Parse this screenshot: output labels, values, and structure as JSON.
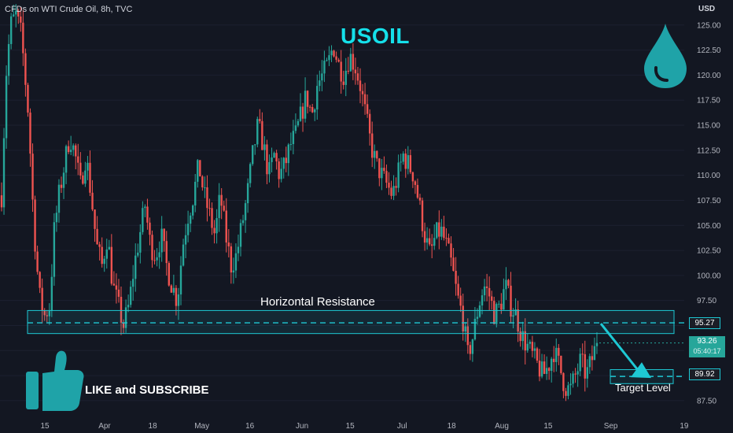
{
  "header": {
    "symbol_line": "CFDs on WTI Crude Oil, 8h, TVC",
    "currency": "USD"
  },
  "overlays": {
    "title": "USOIL",
    "resistance_label": "Horizontal Resistance",
    "target_label": "Target Level",
    "subscribe_label": "LIKE and SUBSCRIBE"
  },
  "price_tags": {
    "resistance": "95.27",
    "target": "89.92",
    "current_price": "93.26",
    "countdown": "05:40:17"
  },
  "colors": {
    "background": "#131722",
    "up": "#26a69a",
    "down": "#ef5350",
    "accent": "#1ec8d4",
    "icon": "#1fa3a8"
  },
  "icons": [
    "water-drop-icon",
    "thumbs-up-icon",
    "arrow-icon"
  ],
  "chart_data": {
    "type": "candlestick",
    "timeframe": "8h",
    "ylim": [
      86,
      127.5
    ],
    "y_ticks": [
      "87.50",
      "90.00",
      "92.50",
      "95.00",
      "97.50",
      "100.00",
      "102.50",
      "105.00",
      "107.50",
      "110.00",
      "112.50",
      "115.00",
      "117.50",
      "120.00",
      "122.50",
      "125.00"
    ],
    "x_ticks": [
      {
        "label": "15",
        "pos": 0.0
      },
      {
        "label": "Apr",
        "pos": 0.0929
      },
      {
        "label": "18",
        "pos": 0.1676
      },
      {
        "label": "May",
        "pos": 0.2441
      },
      {
        "label": "16",
        "pos": 0.3187
      },
      {
        "label": "Jun",
        "pos": 0.3999
      },
      {
        "label": "15",
        "pos": 0.4745
      },
      {
        "label": "Jul",
        "pos": 0.5553
      },
      {
        "label": "18",
        "pos": 0.6322
      },
      {
        "label": "Aug",
        "pos": 0.7103
      },
      {
        "label": "15",
        "pos": 0.7823
      },
      {
        "label": "Sep",
        "pos": 0.8797
      },
      {
        "label": "19",
        "pos": 0.9938
      }
    ],
    "closes_anchor": [
      [
        0.0,
        108
      ],
      [
        0.005,
        120
      ],
      [
        0.01,
        125
      ],
      [
        0.016,
        126
      ],
      [
        0.022,
        124
      ],
      [
        0.03,
        116
      ],
      [
        0.036,
        105
      ],
      [
        0.042,
        98
      ],
      [
        0.048,
        96
      ],
      [
        0.054,
        97
      ],
      [
        0.058,
        104
      ],
      [
        0.064,
        108
      ],
      [
        0.07,
        111
      ],
      [
        0.076,
        114
      ],
      [
        0.082,
        112
      ],
      [
        0.088,
        109
      ],
      [
        0.094,
        112
      ],
      [
        0.1,
        108
      ],
      [
        0.106,
        103
      ],
      [
        0.112,
        101
      ],
      [
        0.118,
        104
      ],
      [
        0.124,
        99
      ],
      [
        0.13,
        97
      ],
      [
        0.136,
        95
      ],
      [
        0.142,
        97
      ],
      [
        0.148,
        101
      ],
      [
        0.154,
        104
      ],
      [
        0.16,
        107
      ],
      [
        0.166,
        103
      ],
      [
        0.172,
        102
      ],
      [
        0.178,
        104
      ],
      [
        0.184,
        101
      ],
      [
        0.19,
        99
      ],
      [
        0.196,
        97.5
      ],
      [
        0.202,
        103
      ],
      [
        0.208,
        106
      ],
      [
        0.214,
        108
      ],
      [
        0.22,
        111
      ],
      [
        0.226,
        108
      ],
      [
        0.232,
        106
      ],
      [
        0.238,
        104
      ],
      [
        0.244,
        108
      ],
      [
        0.25,
        104
      ],
      [
        0.256,
        101
      ],
      [
        0.262,
        102
      ],
      [
        0.268,
        105
      ],
      [
        0.274,
        108
      ],
      [
        0.28,
        112
      ],
      [
        0.286,
        115
      ],
      [
        0.292,
        113
      ],
      [
        0.298,
        110
      ],
      [
        0.304,
        112
      ],
      [
        0.31,
        110
      ],
      [
        0.316,
        111
      ],
      [
        0.322,
        113
      ],
      [
        0.328,
        114
      ],
      [
        0.334,
        116
      ],
      [
        0.34,
        118
      ],
      [
        0.346,
        116
      ],
      [
        0.352,
        119
      ],
      [
        0.358,
        120
      ],
      [
        0.364,
        121
      ],
      [
        0.37,
        123
      ],
      [
        0.376,
        121
      ],
      [
        0.382,
        120
      ],
      [
        0.388,
        122
      ],
      [
        0.394,
        121
      ],
      [
        0.4,
        119
      ],
      [
        0.406,
        116
      ],
      [
        0.412,
        113
      ],
      [
        0.418,
        111
      ],
      [
        0.424,
        110
      ],
      [
        0.43,
        109
      ],
      [
        0.436,
        108
      ],
      [
        0.442,
        110
      ],
      [
        0.448,
        112
      ],
      [
        0.454,
        111
      ],
      [
        0.46,
        110
      ],
      [
        0.466,
        107
      ],
      [
        0.472,
        104
      ],
      [
        0.478,
        102
      ],
      [
        0.484,
        104
      ],
      [
        0.49,
        104.5
      ],
      [
        0.496,
        103
      ],
      [
        0.502,
        101
      ],
      [
        0.508,
        98
      ],
      [
        0.514,
        96
      ],
      [
        0.52,
        92
      ],
      [
        0.526,
        94
      ],
      [
        0.532,
        97
      ],
      [
        0.538,
        99
      ],
      [
        0.544,
        98
      ],
      [
        0.55,
        96
      ],
      [
        0.556,
        97
      ],
      [
        0.562,
        99
      ],
      [
        0.568,
        97
      ],
      [
        0.574,
        96
      ],
      [
        0.58,
        94
      ],
      [
        0.586,
        93
      ],
      [
        0.592,
        92
      ],
      [
        0.598,
        91
      ],
      [
        0.604,
        90
      ],
      [
        0.61,
        91
      ],
      [
        0.616,
        92.5
      ],
      [
        0.622,
        91
      ],
      [
        0.628,
        89
      ],
      [
        0.634,
        88.5
      ],
      [
        0.64,
        90
      ],
      [
        0.646,
        91.5
      ],
      [
        0.652,
        90
      ],
      [
        0.658,
        91.5
      ],
      [
        0.664,
        93.26
      ]
    ],
    "resistance_level": 95.27,
    "resistance_zone": [
      94.2,
      96.5
    ],
    "target_level": 89.92,
    "target_zone": [
      89.2,
      90.6
    ],
    "current_price": 93.26
  }
}
